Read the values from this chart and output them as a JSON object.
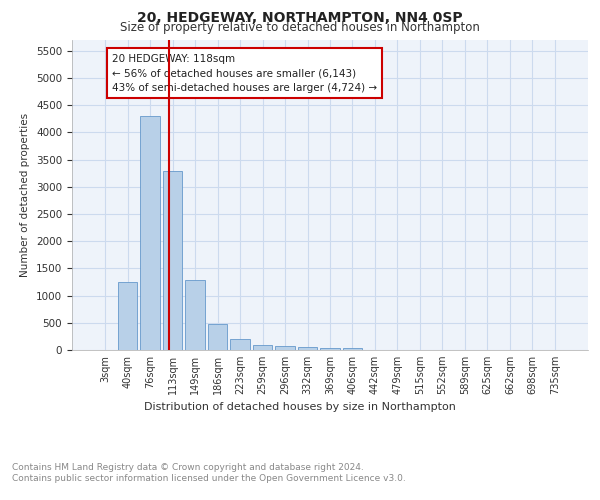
{
  "title1": "20, HEDGEWAY, NORTHAMPTON, NN4 0SP",
  "title2": "Size of property relative to detached houses in Northampton",
  "xlabel": "Distribution of detached houses by size in Northampton",
  "ylabel": "Number of detached properties",
  "categories": [
    "3sqm",
    "40sqm",
    "76sqm",
    "113sqm",
    "149sqm",
    "186sqm",
    "223sqm",
    "259sqm",
    "296sqm",
    "332sqm",
    "369sqm",
    "406sqm",
    "442sqm",
    "479sqm",
    "515sqm",
    "552sqm",
    "589sqm",
    "625sqm",
    "662sqm",
    "698sqm",
    "735sqm"
  ],
  "values": [
    0,
    1250,
    4300,
    3300,
    1280,
    480,
    200,
    100,
    80,
    60,
    40,
    40,
    0,
    0,
    0,
    0,
    0,
    0,
    0,
    0,
    0
  ],
  "bar_color": "#b8d0e8",
  "bar_edge_color": "#6699cc",
  "bar_width": 0.85,
  "vline_x": 2.85,
  "vline_color": "#cc0000",
  "ylim": [
    0,
    5700
  ],
  "yticks": [
    0,
    500,
    1000,
    1500,
    2000,
    2500,
    3000,
    3500,
    4000,
    4500,
    5000,
    5500
  ],
  "annotation_title": "20 HEDGEWAY: 118sqm",
  "annotation_line1": "← 56% of detached houses are smaller (6,143)",
  "annotation_line2": "43% of semi-detached houses are larger (4,724) →",
  "annotation_box_color": "#ffffff",
  "annotation_box_edge": "#cc0000",
  "grid_color": "#ccdaee",
  "bg_color": "#eef3fa",
  "footnote1": "Contains HM Land Registry data © Crown copyright and database right 2024.",
  "footnote2": "Contains public sector information licensed under the Open Government Licence v3.0."
}
